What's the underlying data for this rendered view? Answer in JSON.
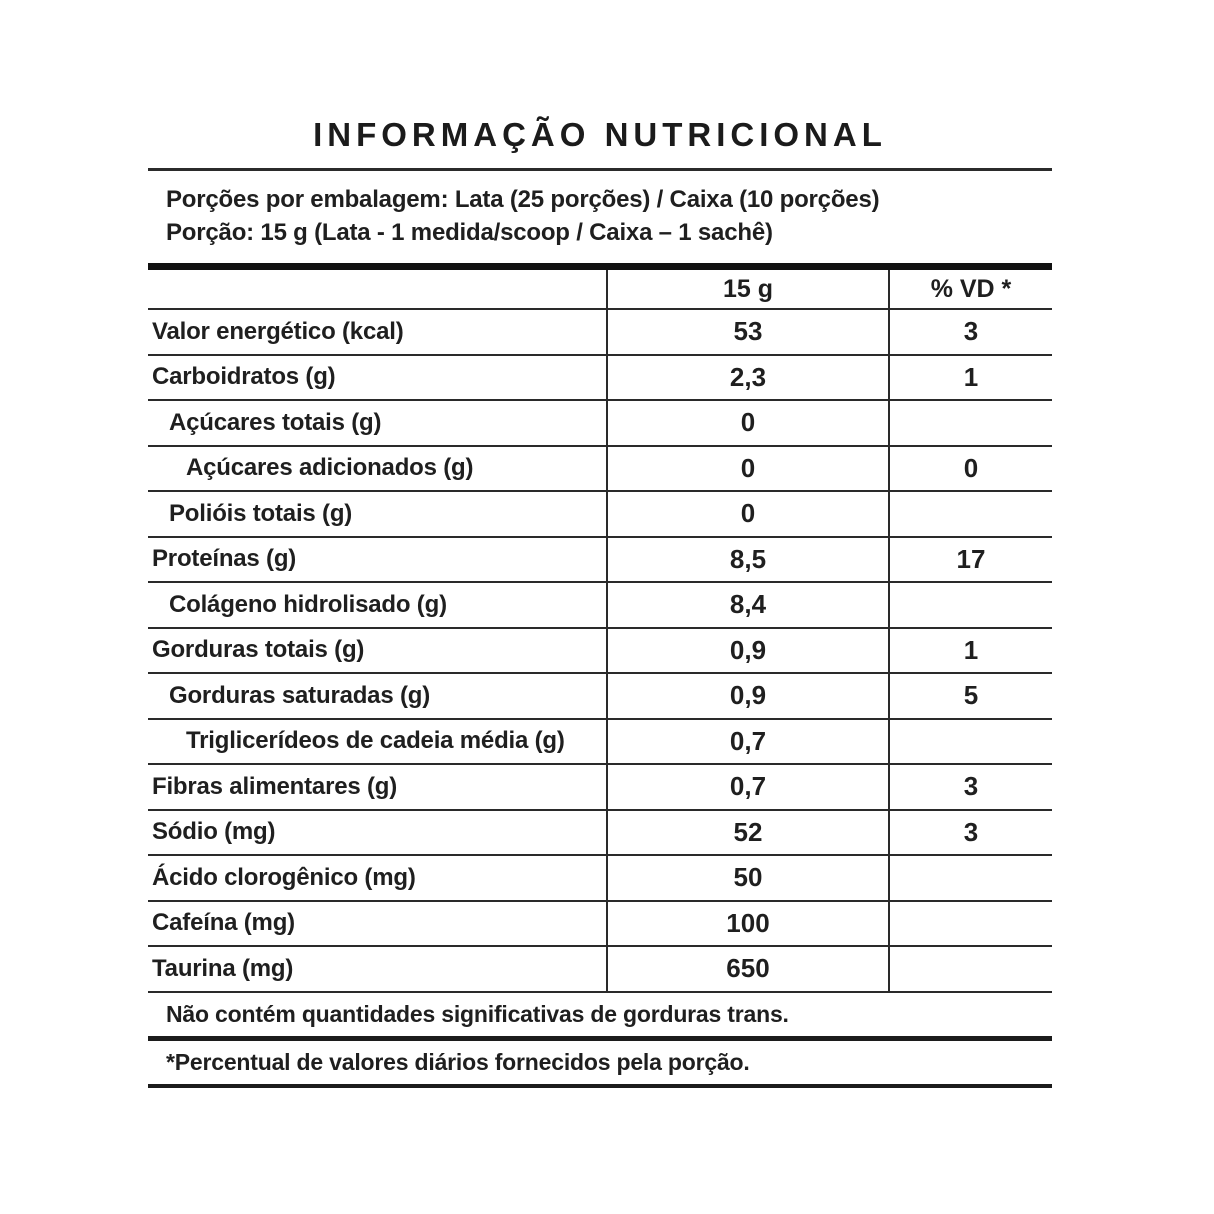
{
  "title": "INFORMAÇÃO NUTRICIONAL",
  "serving_info": {
    "line1": "Porções por embalagem: Lata (25 porções) / Caixa (10 porções)",
    "line2": "Porção: 15 g (Lata - 1 medida/scoop / Caixa – 1 sachê)"
  },
  "table": {
    "header": {
      "amount_label": "15 g",
      "dv_label": "% VD *"
    },
    "rows": [
      {
        "label": "Valor energético (kcal)",
        "value": "53",
        "dv": "3",
        "indent": 0
      },
      {
        "label": "Carboidratos (g)",
        "value": "2,3",
        "dv": "1",
        "indent": 0
      },
      {
        "label": "Açúcares totais (g)",
        "value": "0",
        "dv": "",
        "indent": 1
      },
      {
        "label": "Açúcares adicionados (g)",
        "value": "0",
        "dv": "0",
        "indent": 2
      },
      {
        "label": "Polióis totais (g)",
        "value": "0",
        "dv": "",
        "indent": 1
      },
      {
        "label": "Proteínas (g)",
        "value": "8,5",
        "dv": "17",
        "indent": 0
      },
      {
        "label": "Colágeno hidrolisado (g)",
        "value": "8,4",
        "dv": "",
        "indent": 1
      },
      {
        "label": "Gorduras totais (g)",
        "value": "0,9",
        "dv": "1",
        "indent": 0
      },
      {
        "label": "Gorduras saturadas (g)",
        "value": "0,9",
        "dv": "5",
        "indent": 1
      },
      {
        "label": "Triglicerídeos de cadeia média (g)",
        "value": "0,7",
        "dv": "",
        "indent": 2
      },
      {
        "label": "Fibras alimentares (g)",
        "value": "0,7",
        "dv": "3",
        "indent": 0
      },
      {
        "label": "Sódio (mg)",
        "value": "52",
        "dv": "3",
        "indent": 0
      },
      {
        "label": "Ácido clorogênico (mg)",
        "value": "50",
        "dv": "",
        "indent": 0
      },
      {
        "label": "Cafeína (mg)",
        "value": "100",
        "dv": "",
        "indent": 0
      },
      {
        "label": "Taurina (mg)",
        "value": "650",
        "dv": "",
        "indent": 0
      }
    ]
  },
  "footnotes": {
    "trans_fat": "Não contém quantidades significativas de gorduras trans.",
    "daily_values": "*Percentual de valores diários fornecidos pela porção."
  },
  "colors": {
    "text": "#1f1f1f",
    "rule": "#2a2a2a",
    "thick_bar": "#111111",
    "background": "#ffffff"
  }
}
